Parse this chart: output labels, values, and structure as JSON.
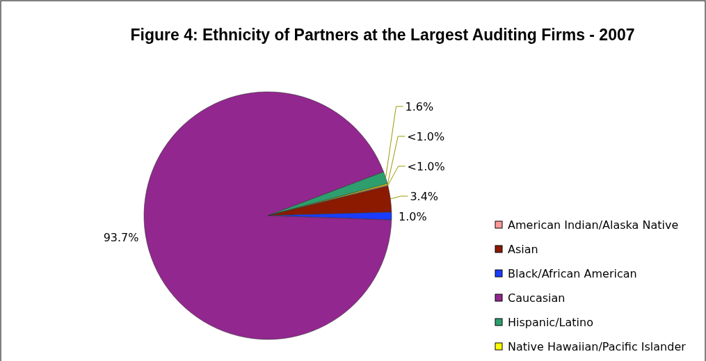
{
  "chart_data": {
    "type": "pie",
    "title": "Figure 4: Ethnicity of Partners at the Largest Auditing Firms - 2007",
    "categories": [
      "American Indian/Alaska Native",
      "Asian",
      "Black/African American",
      "Caucasian",
      "Hispanic/Latino",
      "Native Hawaiian/Pacific Islander"
    ],
    "values": [
      0.15,
      3.4,
      1.0,
      93.7,
      1.6,
      0.15
    ],
    "value_labels": [
      "<1.0%",
      "3.4%",
      "1.0%",
      "93.7%",
      "1.6%",
      "<1.0%"
    ],
    "colors": [
      "#ff9999",
      "#8b1a00",
      "#1a3cff",
      "#92278f",
      "#2e9e6e",
      "#ffff00"
    ],
    "legend": "right"
  }
}
